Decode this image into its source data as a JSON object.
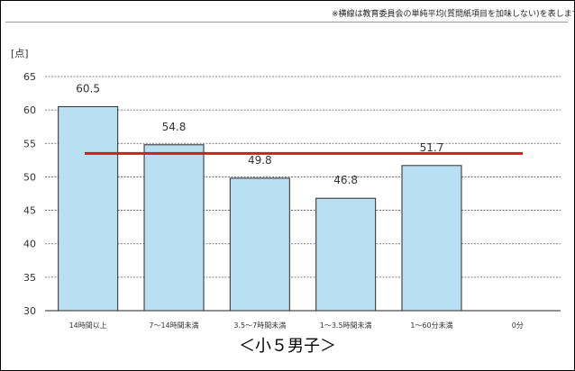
{
  "chart_data": {
    "type": "bar",
    "title": "",
    "note": "※横線は教育委員会の単純平均(質問紙項目を加味しない)を表します",
    "ylabel": "[点]",
    "xlabel": "",
    "categories": [
      "14時間以上",
      "7～14時間未満",
      "3.5～7時間未満",
      "1～3.5時間未満",
      "1～60分未満",
      "0分"
    ],
    "values": [
      60.5,
      54.8,
      49.8,
      46.8,
      51.7,
      null
    ],
    "data_labels": [
      "60.5",
      "54.8",
      "49.8",
      "46.8",
      "51.7",
      ""
    ],
    "ylim": [
      30,
      65
    ],
    "yticks": [
      30,
      35,
      40,
      45,
      50,
      55,
      60,
      65
    ],
    "reference_line": 53.5,
    "grid": true,
    "caption": "＜小５男子＞",
    "colors": {
      "bar_fill": "#b8dff2",
      "bar_stroke": "#2a2a2a",
      "reference_line": "#cc1f1f",
      "grid": "#555555"
    }
  }
}
